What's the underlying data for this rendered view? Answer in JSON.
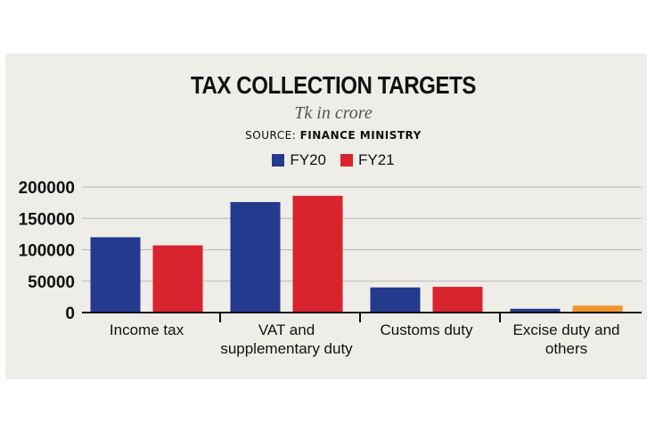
{
  "chart_data": {
    "type": "bar",
    "title": "TAX COLLECTION TARGETS",
    "subtitle": "Tk in crore",
    "source_label": "SOURCE:",
    "source_name": "FINANCE MINISTRY",
    "categories": [
      "Income tax",
      "VAT and supplementary duty",
      "Customs duty",
      "Excise duty and others"
    ],
    "category_lines": [
      [
        "Income tax"
      ],
      [
        "VAT and",
        "supplementary duty"
      ],
      [
        "Customs duty"
      ],
      [
        "Excise duty and",
        "others"
      ]
    ],
    "series": [
      {
        "name": "FY20",
        "color": "#233a8f",
        "values": [
          120000,
          176000,
          40000,
          6000
        ]
      },
      {
        "name": "FY21",
        "color": "#d9232e",
        "values": [
          107000,
          186000,
          41000,
          11000
        ]
      }
    ],
    "special_bar_colors": {
      "3": {
        "FY21": "#f0962b"
      }
    },
    "yticks": [
      0,
      50000,
      100000,
      150000,
      200000
    ],
    "ylim": [
      0,
      200000
    ],
    "grid": true,
    "legend_position": "top-center"
  }
}
